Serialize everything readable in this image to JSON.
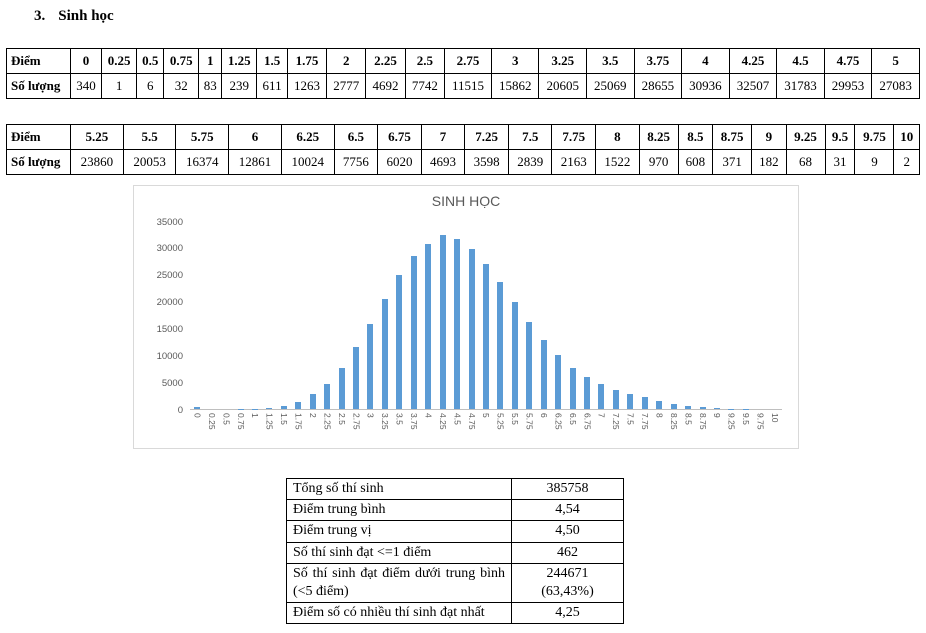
{
  "heading": {
    "number": "3.",
    "title": "Sinh học"
  },
  "tables": {
    "score_label": "Điểm",
    "count_label": "Số lượng",
    "split_index": 21
  },
  "chart_data": {
    "type": "bar",
    "title": "SINH HỌC",
    "categories": [
      "0",
      "0.25",
      "0.5",
      "0.75",
      "1",
      "1.25",
      "1.5",
      "1.75",
      "2",
      "2.25",
      "2.5",
      "2.75",
      "3",
      "3.25",
      "3.5",
      "3.75",
      "4",
      "4.25",
      "4.5",
      "4.75",
      "5",
      "5.25",
      "5.5",
      "5.75",
      "6",
      "6.25",
      "6.5",
      "6.75",
      "7",
      "7.25",
      "7.5",
      "7.75",
      "8",
      "8.25",
      "8.5",
      "8.75",
      "9",
      "9.25",
      "9.5",
      "9.75",
      "10"
    ],
    "values": [
      340,
      1,
      6,
      32,
      83,
      239,
      611,
      1263,
      2777,
      4692,
      7742,
      11515,
      15862,
      20605,
      25069,
      28655,
      30936,
      32507,
      31783,
      29953,
      27083,
      23860,
      20053,
      16374,
      12861,
      10024,
      7756,
      6020,
      4693,
      3598,
      2839,
      2163,
      1522,
      970,
      608,
      371,
      182,
      68,
      31,
      9,
      2
    ],
    "xlabel": "",
    "ylabel": "",
    "ylim": [
      0,
      35000
    ],
    "yticks": [
      0,
      5000,
      10000,
      15000,
      20000,
      25000,
      30000,
      35000
    ],
    "grid": false,
    "legend": "none",
    "bar_color": "#5B9BD5",
    "title_color": "#595959"
  },
  "summary": {
    "rows": [
      {
        "label": "Tổng số thí sinh",
        "value": "385758"
      },
      {
        "label": "Điểm trung bình",
        "value": "4,54"
      },
      {
        "label": "Điểm trung vị",
        "value": "4,50"
      },
      {
        "label": "Số thí sinh đạt <=1 điểm",
        "value": "462"
      },
      {
        "label": "Số thí sinh đạt điểm dưới trung bình (<5 điểm)",
        "value": "244671\n(63,43%)"
      },
      {
        "label": "Điểm số có nhiều thí sinh đạt nhất",
        "value": "4,25"
      }
    ]
  }
}
